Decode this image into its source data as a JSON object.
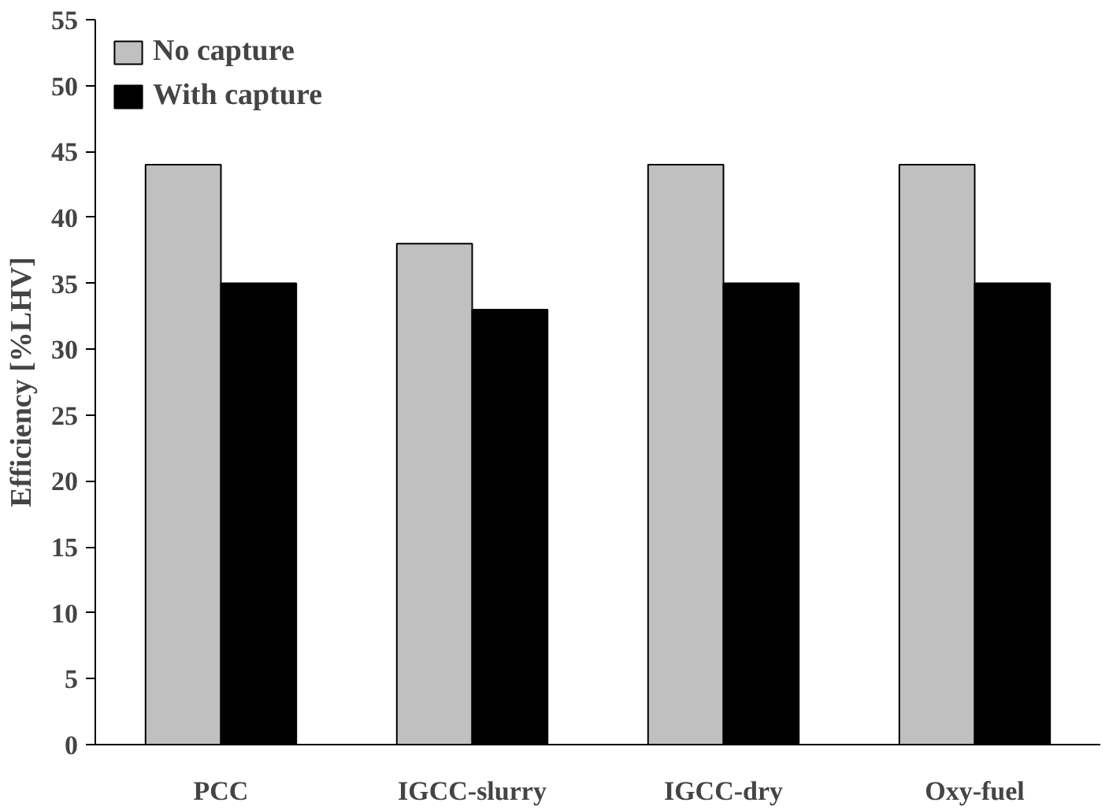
{
  "chart_data": {
    "type": "bar",
    "ylabel": "Efficiency [%LHV]",
    "categories": [
      "PCC",
      "IGCC-slurry",
      "IGCC-dry",
      "Oxy-fuel"
    ],
    "series": [
      {
        "name": "No capture",
        "color": "#c0c0c0",
        "values": [
          44,
          38,
          44,
          44
        ]
      },
      {
        "name": "With capture",
        "color": "#000000",
        "values": [
          35,
          33,
          35,
          35
        ]
      }
    ],
    "ylim": [
      0,
      55
    ],
    "yticks": [
      0,
      5,
      10,
      15,
      20,
      25,
      30,
      35,
      40,
      45,
      50,
      55
    ],
    "grid": false,
    "legend": "top left"
  }
}
